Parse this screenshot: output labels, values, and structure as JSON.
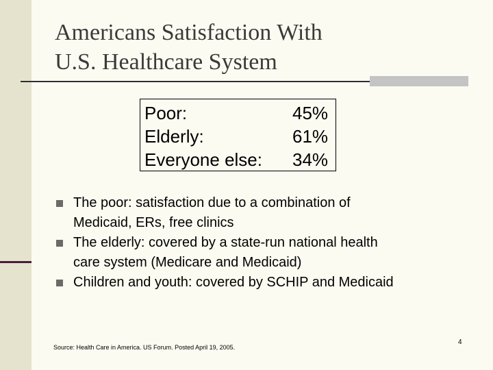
{
  "slide": {
    "title_lines": [
      "Americans Satisfaction With",
      "U.S. Healthcare System"
    ],
    "stats": [
      {
        "label": "Poor:",
        "value": "45%"
      },
      {
        "label": "Elderly:",
        "value": "61%"
      },
      {
        "label": "Everyone else:",
        "value": "34%"
      }
    ],
    "bullets": [
      {
        "lines": [
          "The poor: satisfaction due to a combination of",
          "Medicaid, ERs, free clinics"
        ]
      },
      {
        "lines": [
          "The elderly: covered by a state-run national health",
          "care system (Medicare and Medicaid)"
        ]
      },
      {
        "lines": [
          "Children and youth: covered by SCHIP and Medicaid"
        ]
      }
    ],
    "source": "Source: Health Care in America. US Forum. Posted April 19, 2005.",
    "page_number": "4"
  },
  "colors": {
    "background": "#fbfbf1",
    "left_band": "#e5e3cd",
    "accent": "#4b1a3a",
    "bullet": "#6a6a6a"
  }
}
